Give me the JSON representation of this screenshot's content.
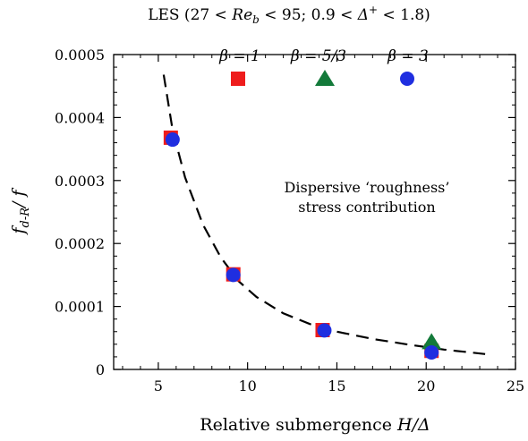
{
  "chart_data": {
    "type": "scatter",
    "title": "LES (27 < Re_b < 95; 0.9 < Δ+ < 1.8)",
    "title_parts": {
      "pre": "LES (27 < ",
      "re": "Re",
      "re_sub": "b",
      "mid": " < 95; 0.9 < ",
      "delta": "Δ",
      "delta_sup": "+",
      "post": " < 1.8)"
    },
    "xlabel": "Relative submergence H/Δ",
    "xlabel_parts": {
      "text": "Relative submergence ",
      "math": "H/Δ"
    },
    "ylabel": "f_{d-R}/f",
    "ylabel_parts": {
      "f": "f",
      "sub": "d-R",
      "rest": "/ f"
    },
    "xlim": [
      2.5,
      25
    ],
    "ylim": [
      0,
      0.0005
    ],
    "xticks": [
      5,
      10,
      15,
      20,
      25
    ],
    "xtick_labels": [
      "5",
      "10",
      "15",
      "20",
      "25"
    ],
    "yticks": [
      0,
      0.0001,
      0.0002,
      0.0003,
      0.0004,
      0.0005
    ],
    "ytick_labels": [
      "0",
      "0.0001",
      "0.0002",
      "0.0003",
      "0.0004",
      "0.0005"
    ],
    "annotation": [
      "Dispersive ‘roughness’",
      "stress contribution"
    ],
    "legend_position": "top",
    "series": [
      {
        "name": "β = 1",
        "marker": "square",
        "color": "#ee1c1c",
        "points": [
          [
            5.7,
            0.000368
          ],
          [
            9.2,
            0.000151
          ],
          [
            14.2,
            6.25e-05
          ],
          [
            20.3,
            2.95e-05
          ]
        ]
      },
      {
        "name": "β = 5/3",
        "marker": "triangle",
        "color": "#137a3a",
        "points": [
          [
            20.3,
            4.35e-05
          ]
        ]
      },
      {
        "name": "β = 3",
        "marker": "circle",
        "color": "#1f2ee0",
        "points": [
          [
            5.8,
            0.000365
          ],
          [
            9.2,
            0.00015
          ],
          [
            14.3,
            6.2e-05
          ],
          [
            20.3,
            2.7e-05
          ]
        ]
      }
    ],
    "fit_curve": {
      "style": "dashed",
      "color": "#000000",
      "points": [
        [
          5.3,
          0.000468
        ],
        [
          5.8,
          0.00038
        ],
        [
          6.5,
          0.000305
        ],
        [
          7.5,
          0.00023
        ],
        [
          8.5,
          0.000178
        ],
        [
          9.5,
          0.00014
        ],
        [
          10.5,
          0.000115
        ],
        [
          12,
          8.9e-05
        ],
        [
          13.5,
          7.2e-05
        ],
        [
          15,
          6e-05
        ],
        [
          17,
          4.85e-05
        ],
        [
          19,
          3.95e-05
        ],
        [
          21,
          3.15e-05
        ],
        [
          23.3,
          2.45e-05
        ]
      ]
    }
  }
}
